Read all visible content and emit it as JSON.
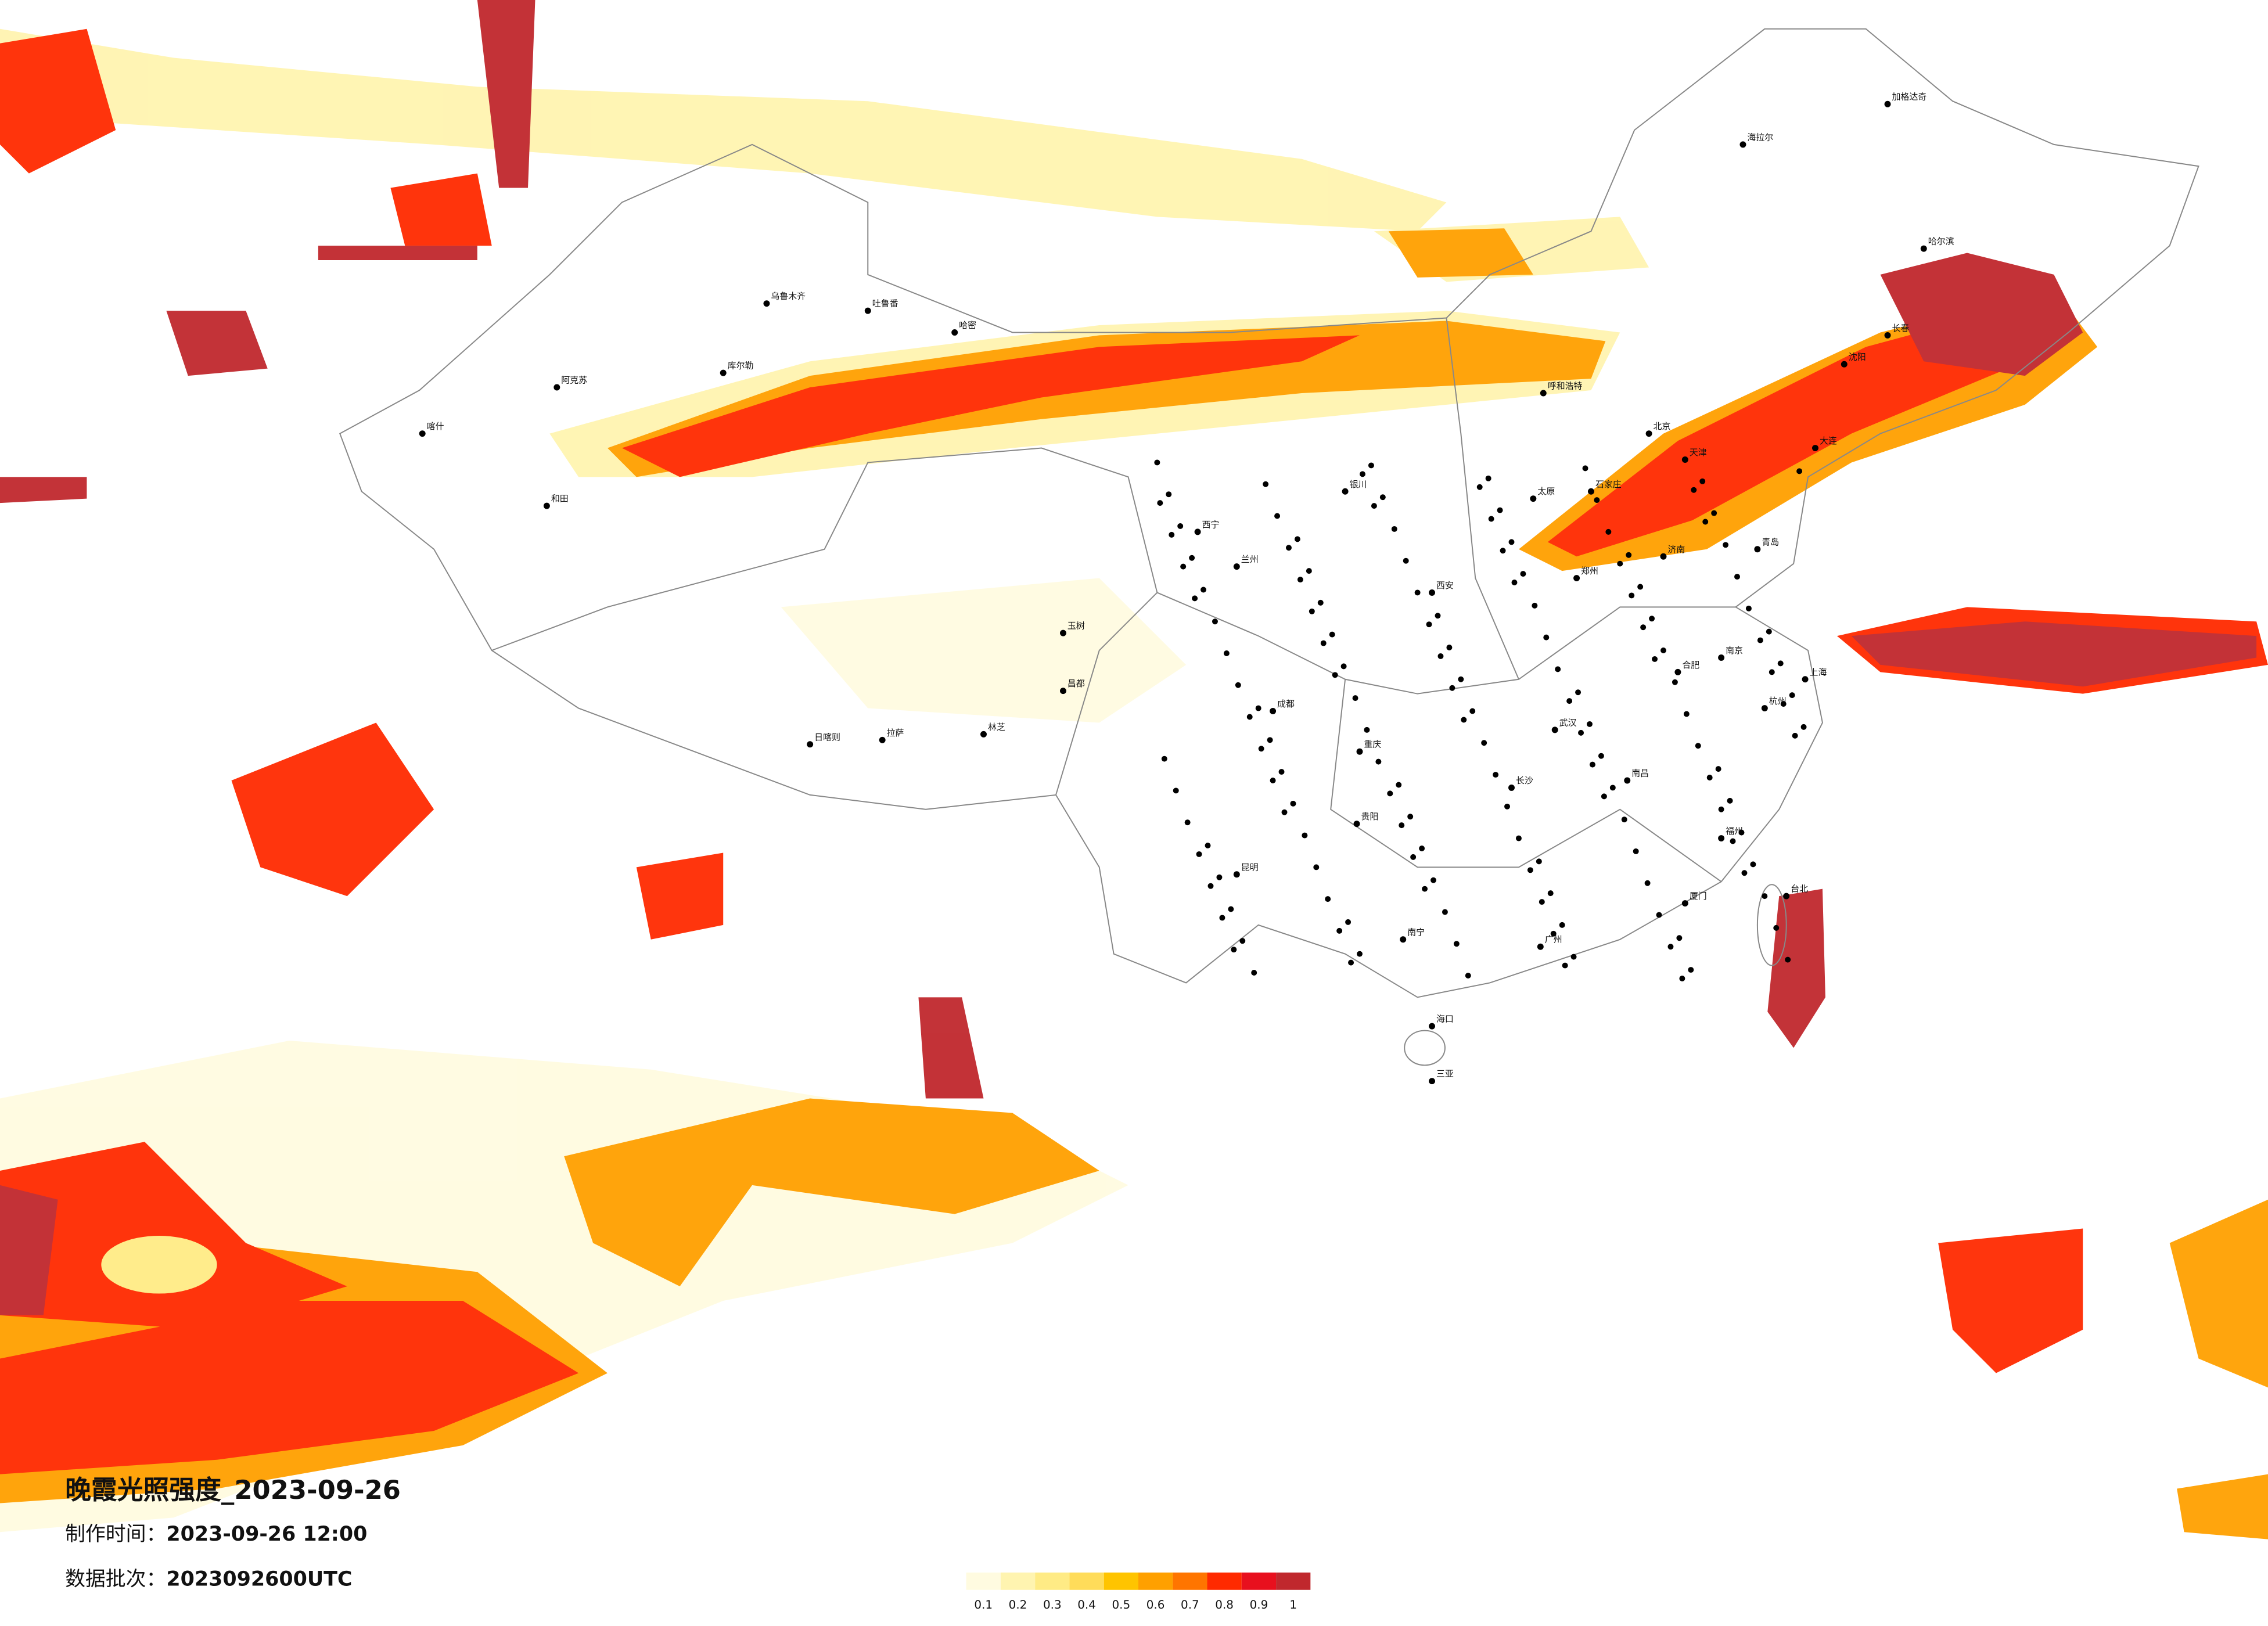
{
  "header": {
    "title": "晚霞光照强度_2023-09-26",
    "made_label": "制作时间：",
    "made_value": "2023-09-26 12:00",
    "batch_label": "数据批次：",
    "batch_value": "2023092600UTC"
  },
  "legend": {
    "levels": [
      0.1,
      0.2,
      0.3,
      0.4,
      0.5,
      0.6,
      0.7,
      0.8,
      0.9,
      1
    ],
    "colors": [
      "#fffbe0",
      "#fff4b0",
      "#ffeb85",
      "#ffdc5a",
      "#ffc400",
      "#ffa000",
      "#ff7500",
      "#ff2a00",
      "#e8101e",
      "#c0282d"
    ]
  },
  "cities": [
    "乌鲁木齐",
    "阿克苏",
    "喀什",
    "和田",
    "库尔勒",
    "哈密",
    "吐鲁番",
    "拉萨",
    "日喀则",
    "林芝",
    "昌都",
    "玉树",
    "西宁",
    "兰州",
    "银川",
    "呼和浩特",
    "北京",
    "天津",
    "石家庄",
    "太原",
    "济南",
    "郑州",
    "西安",
    "成都",
    "重庆",
    "贵阳",
    "昆明",
    "南宁",
    "海口",
    "三亚",
    "广州",
    "厦门",
    "福州",
    "杭州",
    "上海",
    "南京",
    "合肥",
    "武汉",
    "长沙",
    "南昌",
    "沈阳",
    "长春",
    "哈尔滨",
    "海拉尔",
    "加格达奇",
    "台北",
    "大连",
    "青岛"
  ]
}
